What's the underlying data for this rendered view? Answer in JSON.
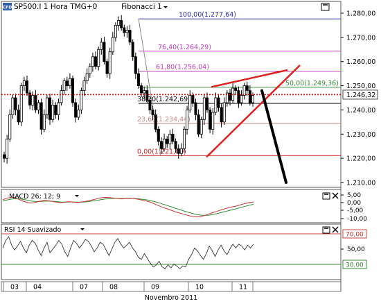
{
  "main_chart": {
    "symbol_badge": "CFD",
    "title": "SP500.I 1 Hora TMG+0",
    "indicator_label": "Fibonacci 1",
    "current_price_label": "1.246,32",
    "y_ticks": [
      {
        "value": 1280,
        "label": "1.280,00"
      },
      {
        "value": 1270,
        "label": "1.270,00"
      },
      {
        "value": 1260,
        "label": "1.260,00"
      },
      {
        "value": 1250,
        "label": "1.250,00"
      },
      {
        "value": 1240,
        "label": "1.240,00"
      },
      {
        "value": 1230,
        "label": "1.230,00"
      },
      {
        "value": 1220,
        "label": "1.220,00"
      },
      {
        "value": 1210,
        "label": "1.210,00"
      }
    ]
  },
  "macd_panel": {
    "label": "MACD 26; 12; 9",
    "y_ticks": [
      "5,00",
      "0,00",
      "-5,00",
      "-10,00"
    ]
  },
  "rsi_panel": {
    "label": "RSI 14 Suavizado",
    "y_ticks": [
      "70,00",
      "50,00",
      "30,00"
    ],
    "upper_level": "70,00",
    "lower_level": "30,00"
  },
  "x_axis": {
    "day_labels": [
      "03",
      "04",
      "07",
      "08",
      "09",
      "10",
      "11"
    ],
    "month_label": "Novembro 2011"
  },
  "colors": {
    "candle": "#000000",
    "fib_100": "#2a2aa8",
    "fib_76": "#c040c0",
    "fib_61": "#c040c0",
    "fib_50": "#3a8a3a",
    "fib_38": "#000000",
    "fib_23": "#cc8888",
    "fib_0": "#cc2222",
    "price_line": "#cc0000",
    "wedge": "#e02020",
    "forecast_arrow": "#000000",
    "macd_line": "#cc3333",
    "signal_line": "#2f8f2f",
    "rsi_line": "#333333"
  },
  "icons": [
    "expand-icon",
    "close-icon"
  ],
  "chart_data": {
    "type": "candlestick",
    "title": "SP500.I 1 Hora TMG+0",
    "xlabel": "Novembro 2011",
    "ylabel": "",
    "ylim": [
      1205,
      1285
    ],
    "x_categories": [
      "03",
      "04",
      "07",
      "08",
      "09",
      "10",
      "11"
    ],
    "current_price": 1246.32,
    "fibonacci_levels": [
      {
        "ratio": "100,00",
        "price": 1277.64,
        "label": "100,00(1.277,64)"
      },
      {
        "ratio": "76,40",
        "price": 1264.29,
        "label": "76,40(1.264,29)"
      },
      {
        "ratio": "61,80",
        "price": 1256.04,
        "label": "61,80(1.256,04)"
      },
      {
        "ratio": "50,00",
        "price": 1249.36,
        "label": "50,00(1.249,36)"
      },
      {
        "ratio": "38,20",
        "price": 1242.69,
        "label": "38,20(1.242,69)"
      },
      {
        "ratio": "23,60",
        "price": 1234.44,
        "label": "23,60(1.234,44)"
      },
      {
        "ratio": "0,00",
        "price": 1221.09,
        "label": "0,00(1.221,09)"
      }
    ],
    "close_path": [
      1220,
      1228,
      1238,
      1245,
      1240,
      1235,
      1250,
      1252,
      1247,
      1242,
      1246,
      1240,
      1243,
      1232,
      1238,
      1245,
      1236,
      1242,
      1238,
      1243,
      1248,
      1252,
      1250,
      1253,
      1243,
      1237,
      1240,
      1248,
      1252,
      1255,
      1258,
      1262,
      1258,
      1265,
      1268,
      1260,
      1255,
      1264,
      1270,
      1275,
      1277,
      1274,
      1272,
      1273,
      1268,
      1262,
      1255,
      1250,
      1247,
      1248,
      1244,
      1240,
      1238,
      1232,
      1227,
      1224,
      1228,
      1226,
      1230,
      1227,
      1224,
      1222,
      1224,
      1232,
      1240,
      1246,
      1243,
      1238,
      1230,
      1236,
      1245,
      1240,
      1232,
      1239,
      1245,
      1241,
      1235,
      1243,
      1247,
      1244,
      1249,
      1248,
      1243,
      1246,
      1250,
      1248,
      1243,
      1246
    ],
    "macd_ylim": [
      -12,
      8
    ],
    "macd": [
      2.5,
      3.5,
      4.2,
      3.8,
      2.6,
      1.5,
      0.6,
      0.2,
      0.8,
      1.5,
      2.0,
      1.8,
      1.4,
      0.9,
      0.5,
      0.8,
      1.2,
      1.0,
      0.6,
      0.9,
      1.3,
      1.9,
      2.5,
      3.2,
      3.8,
      4.1,
      3.9,
      3.6,
      3.2,
      3.0,
      3.3,
      3.5,
      3.2,
      2.8,
      2.2,
      1.6,
      0.8,
      -0.4,
      -1.6,
      -2.8,
      -3.6,
      -4.6,
      -5.6,
      -6.4,
      -7.2,
      -8.0,
      -8.6,
      -9.0,
      -8.8,
      -8.2,
      -7.2,
      -6.2,
      -5.4,
      -4.4,
      -3.6,
      -2.8,
      -2.2,
      -1.6,
      -0.8,
      0.0,
      0.6,
      1.0
    ],
    "signal": [
      1.8,
      2.3,
      2.9,
      3.2,
      3.1,
      2.7,
      2.2,
      1.6,
      1.3,
      1.3,
      1.5,
      1.6,
      1.5,
      1.3,
      1.0,
      0.9,
      1.0,
      1.0,
      0.9,
      0.9,
      1.0,
      1.3,
      1.7,
      2.1,
      2.6,
      3.0,
      3.3,
      3.4,
      3.3,
      3.2,
      3.2,
      3.3,
      3.3,
      3.1,
      2.8,
      2.4,
      1.9,
      1.2,
      0.4,
      -0.5,
      -1.4,
      -2.3,
      -3.2,
      -4.1,
      -5.0,
      -5.8,
      -6.6,
      -7.3,
      -7.8,
      -8.0,
      -7.9,
      -7.5,
      -6.9,
      -6.2,
      -5.5,
      -4.8,
      -4.1,
      -3.4,
      -2.6,
      -1.9,
      -1.2,
      -0.6
    ],
    "rsi_ylim": [
      20,
      75
    ],
    "rsi": [
      52,
      60,
      64,
      55,
      50,
      54,
      59,
      52,
      47,
      55,
      60,
      57,
      50,
      44,
      52,
      58,
      47,
      51,
      55,
      60,
      56,
      48,
      43,
      52,
      60,
      57,
      52,
      56,
      61,
      59,
      54,
      48,
      52,
      58,
      56,
      50,
      44,
      51,
      58,
      62,
      56,
      52,
      55,
      58,
      52,
      48,
      42,
      40,
      46,
      41,
      36,
      32,
      34,
      38,
      32,
      30,
      34,
      31,
      35,
      33,
      30,
      33,
      32,
      40,
      45,
      52,
      49,
      44,
      40,
      46,
      54,
      49,
      43,
      50,
      55,
      49,
      45,
      51,
      56,
      52,
      56,
      54,
      50,
      55,
      52,
      56
    ],
    "rsi_levels": [
      70,
      30
    ]
  }
}
